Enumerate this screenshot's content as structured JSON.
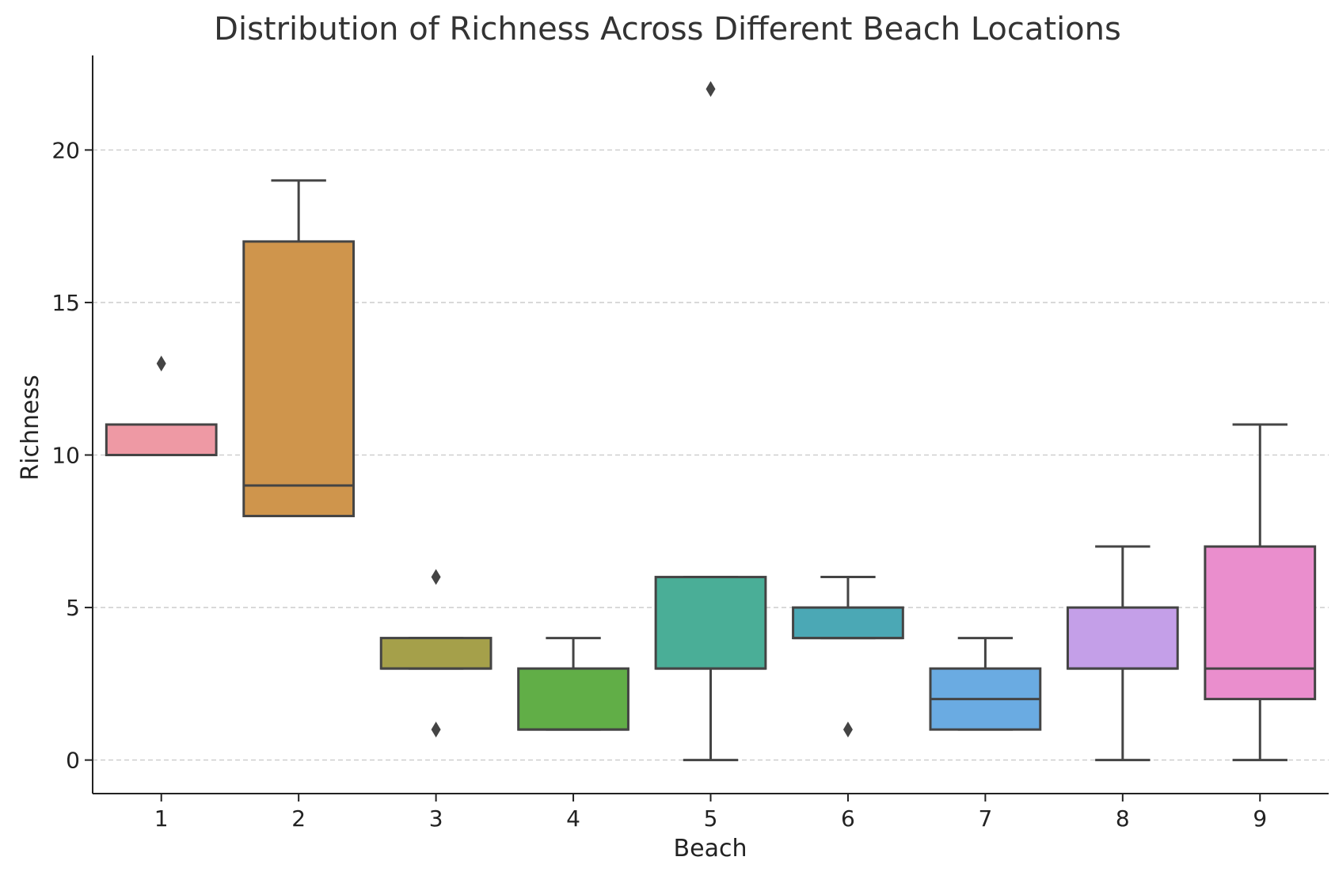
{
  "chart_data": {
    "type": "box",
    "title": "Distribution of Richness Across Different Beach Locations",
    "xlabel": "Beach",
    "ylabel": "Richness",
    "ylim": [
      -1.1,
      23.1
    ],
    "yticks": [
      0,
      5,
      10,
      15,
      20
    ],
    "grid": "y-dashed",
    "categories": [
      "1",
      "2",
      "3",
      "4",
      "5",
      "6",
      "7",
      "8",
      "9"
    ],
    "boxes": [
      {
        "category": "1",
        "q1": 10,
        "median": 10,
        "q3": 11,
        "whisker_low": 10,
        "whisker_high": 11,
        "outliers": [
          13
        ],
        "color": "#ee99a4"
      },
      {
        "category": "2",
        "q1": 8,
        "median": 9,
        "q3": 17,
        "whisker_low": 8,
        "whisker_high": 19,
        "outliers": [],
        "color": "#cf954c"
      },
      {
        "category": "3",
        "q1": 3,
        "median": 3,
        "q3": 4,
        "whisker_low": 3,
        "whisker_high": 4,
        "outliers": [
          6,
          1
        ],
        "color": "#a5a04a"
      },
      {
        "category": "4",
        "q1": 1,
        "median": 1,
        "q3": 3,
        "whisker_low": 1,
        "whisker_high": 4,
        "outliers": [],
        "color": "#61ae47"
      },
      {
        "category": "5",
        "q1": 3,
        "median": 3,
        "q3": 6,
        "whisker_low": 0,
        "whisker_high": 6,
        "outliers": [
          22
        ],
        "color": "#4aae97"
      },
      {
        "category": "6",
        "q1": 4,
        "median": 4,
        "q3": 5,
        "whisker_low": 4,
        "whisker_high": 6,
        "outliers": [
          1
        ],
        "color": "#4ba8b5"
      },
      {
        "category": "7",
        "q1": 1,
        "median": 2,
        "q3": 3,
        "whisker_low": 1,
        "whisker_high": 4,
        "outliers": [],
        "color": "#6aabe2"
      },
      {
        "category": "8",
        "q1": 3,
        "median": 3,
        "q3": 5,
        "whisker_low": 0,
        "whisker_high": 7,
        "outliers": [],
        "color": "#c49fe8"
      },
      {
        "category": "9",
        "q1": 2,
        "median": 3,
        "q3": 7,
        "whisker_low": 0,
        "whisker_high": 11,
        "outliers": [],
        "color": "#ea8ecd"
      }
    ]
  }
}
